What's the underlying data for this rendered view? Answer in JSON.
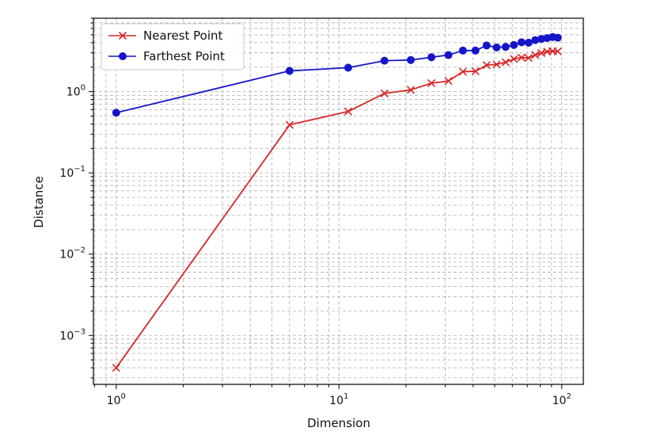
{
  "chart_data": {
    "type": "line",
    "title": "",
    "xlabel": "Dimension",
    "ylabel": "Distance",
    "xscale": "log",
    "yscale": "log",
    "xlim": [
      0.79,
      125
    ],
    "ylim": [
      0.00025,
      8
    ],
    "grid": true,
    "legend_position": "top-left",
    "x_ticks": [
      {
        "value": 1,
        "base": "10",
        "exp": "0"
      },
      {
        "value": 10,
        "base": "10",
        "exp": "1"
      },
      {
        "value": 100,
        "base": "10",
        "exp": "2"
      }
    ],
    "y_ticks": [
      {
        "value": 0.001,
        "base": "10",
        "exp": "−3"
      },
      {
        "value": 0.01,
        "base": "10",
        "exp": "−2"
      },
      {
        "value": 0.1,
        "base": "10",
        "exp": "−1"
      },
      {
        "value": 1,
        "base": "10",
        "exp": "0"
      }
    ],
    "series": [
      {
        "name": "Nearest Point",
        "color": "#d62728",
        "marker": "x",
        "x": [
          1,
          6,
          11,
          16,
          21,
          26,
          31,
          36,
          41,
          46,
          51,
          56,
          61,
          66,
          71,
          76,
          81,
          86,
          91,
          96
        ],
        "y": [
          0.0004,
          0.39,
          0.57,
          0.95,
          1.05,
          1.27,
          1.35,
          1.76,
          1.78,
          2.12,
          2.16,
          2.3,
          2.52,
          2.62,
          2.6,
          2.82,
          2.98,
          3.1,
          3.15,
          3.12
        ]
      },
      {
        "name": "Farthest Point",
        "color": "#1515c8",
        "marker": "o",
        "x": [
          1,
          6,
          11,
          16,
          21,
          26,
          31,
          36,
          41,
          46,
          51,
          56,
          61,
          66,
          71,
          76,
          81,
          86,
          91,
          96
        ],
        "y": [
          0.55,
          1.8,
          1.97,
          2.4,
          2.45,
          2.65,
          2.82,
          3.2,
          3.2,
          3.7,
          3.5,
          3.55,
          3.75,
          4.05,
          4.0,
          4.3,
          4.45,
          4.55,
          4.7,
          4.6
        ]
      }
    ]
  }
}
